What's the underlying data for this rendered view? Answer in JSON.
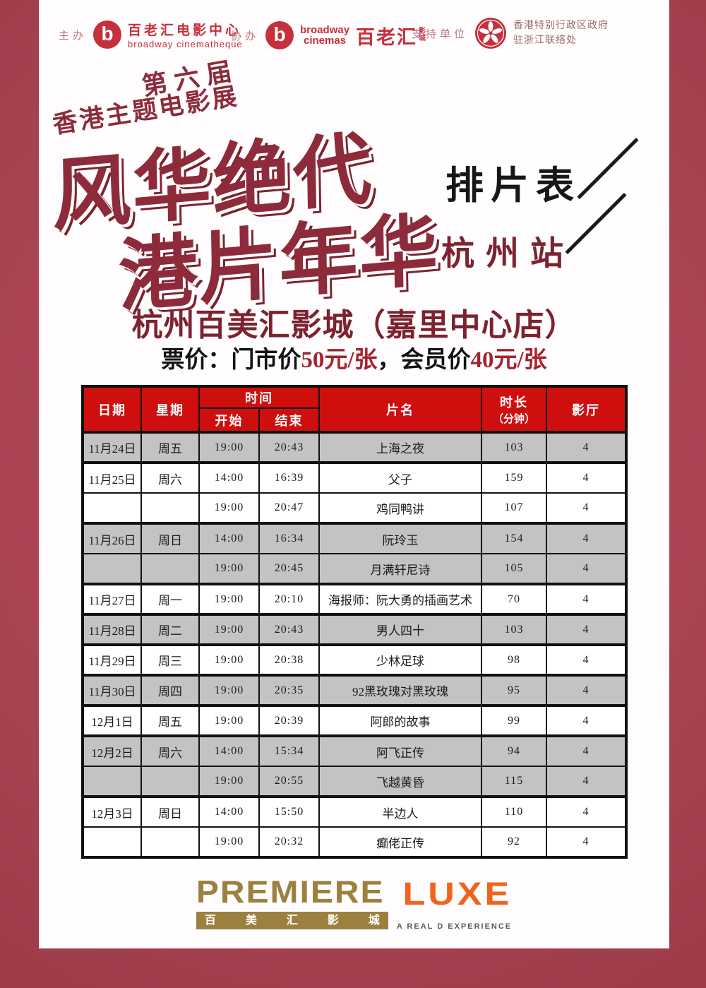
{
  "header": {
    "organizer_label": "主办",
    "organizer_logo": {
      "symbol": "b",
      "cn": "百老汇电影中心",
      "en": "broadway cinematheque"
    },
    "co_organizer_label": "协办",
    "co_organizer_logo": {
      "symbol": "b",
      "en_line1": "broadway",
      "en_line2": "cinemas",
      "cn_main": "百老汇",
      "cn_small_1": "影",
      "cn_small_2": "城"
    },
    "supporter_label": "支持单位",
    "supporter": {
      "line1": "香港特别行政区政府",
      "line2": "驻浙江联络处"
    }
  },
  "title": {
    "edition": "第六届",
    "festival": "香港主题电影展",
    "main_line1": "风华绝代",
    "main_line2": "港片年华",
    "schedule": "排片表",
    "station": "杭州站"
  },
  "venue": {
    "name": "杭州百美汇影城（嘉里中心店）"
  },
  "price": {
    "prefix": "票价：门市价",
    "door": "50元/张",
    "mid": "，会员价",
    "member": "40元/张"
  },
  "table": {
    "headers": {
      "date": "日期",
      "weekday": "星期",
      "time": "时间",
      "start": "开始",
      "end": "结束",
      "title": "片名",
      "duration1": "时长",
      "duration2": "（分钟）",
      "hall": "影厅"
    },
    "rows": [
      {
        "date": "11月24日",
        "weekday": "周五",
        "start": "19:00",
        "end": "20:43",
        "title": "上海之夜",
        "duration": "103",
        "hall": "4"
      },
      {
        "date": "11月25日",
        "weekday": "周六",
        "start": "14:00",
        "end": "16:39",
        "title": "父子",
        "duration": "159",
        "hall": "4"
      },
      {
        "date": "",
        "weekday": "",
        "start": "19:00",
        "end": "20:47",
        "title": "鸡同鸭讲",
        "duration": "107",
        "hall": "4"
      },
      {
        "date": "11月26日",
        "weekday": "周日",
        "start": "14:00",
        "end": "16:34",
        "title": "阮玲玉",
        "duration": "154",
        "hall": "4"
      },
      {
        "date": "",
        "weekday": "",
        "start": "19:00",
        "end": "20:45",
        "title": "月满轩尼诗",
        "duration": "105",
        "hall": "4"
      },
      {
        "date": "11月27日",
        "weekday": "周一",
        "start": "19:00",
        "end": "20:10",
        "title": "海报师：阮大勇的插画艺术",
        "duration": "70",
        "hall": "4"
      },
      {
        "date": "11月28日",
        "weekday": "周二",
        "start": "19:00",
        "end": "20:43",
        "title": "男人四十",
        "duration": "103",
        "hall": "4"
      },
      {
        "date": "11月29日",
        "weekday": "周三",
        "start": "19:00",
        "end": "20:38",
        "title": "少林足球",
        "duration": "98",
        "hall": "4"
      },
      {
        "date": "11月30日",
        "weekday": "周四",
        "start": "19:00",
        "end": "20:35",
        "title": "92黑玫瑰对黑玫瑰",
        "duration": "95",
        "hall": "4"
      },
      {
        "date": "12月1日",
        "weekday": "周五",
        "start": "19:00",
        "end": "20:39",
        "title": "阿郎的故事",
        "duration": "99",
        "hall": "4"
      },
      {
        "date": "12月2日",
        "weekday": "周六",
        "start": "14:00",
        "end": "15:34",
        "title": "阿飞正传",
        "duration": "94",
        "hall": "4"
      },
      {
        "date": "",
        "weekday": "",
        "start": "19:00",
        "end": "20:55",
        "title": "飞越黄昏",
        "duration": "115",
        "hall": "4"
      },
      {
        "date": "12月3日",
        "weekday": "周日",
        "start": "14:00",
        "end": "15:50",
        "title": "半边人",
        "duration": "110",
        "hall": "4"
      },
      {
        "date": "",
        "weekday": "",
        "start": "19:00",
        "end": "20:32",
        "title": "癫佬正传",
        "duration": "92",
        "hall": "4"
      }
    ]
  },
  "footer": {
    "premiere": "PREMIERE",
    "luxe": "LUXE",
    "cn_chars": [
      "百",
      "美",
      "汇",
      "影",
      "城"
    ],
    "reald": "A REAL D EXPERIENCE"
  },
  "colors": {
    "frame": "#aa4453",
    "header_red": "#cf0e0e",
    "row_gray": "#c3c3c3",
    "title_maroon": "#8e2b3b",
    "deep_maroon": "#7d222e",
    "logo_red": "#c5303c",
    "gold": "#9c8040",
    "orange": "#f2631d"
  }
}
